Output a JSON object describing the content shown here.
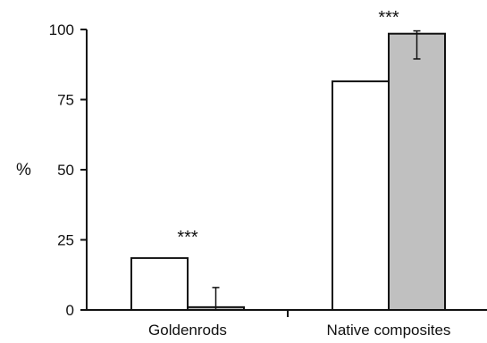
{
  "chart_data": {
    "type": "bar",
    "categories": [
      "Goldenrods",
      "Native composites"
    ],
    "series": [
      {
        "values": [
          18.5,
          81.5
        ],
        "color": "#ffffff"
      },
      {
        "values": [
          1.0,
          98.5
        ],
        "color": "#c0c0c0",
        "error_bars": [
          [
            0,
            8
          ],
          [
            89.5,
            99.5
          ]
        ]
      }
    ],
    "ylabel": "%",
    "xlabel": "",
    "ylim": [
      0,
      100
    ],
    "yticks": [
      "0",
      "25",
      "50",
      "75",
      "100"
    ],
    "annotations": [
      "***",
      "***"
    ],
    "grid": false,
    "legend": "none"
  }
}
